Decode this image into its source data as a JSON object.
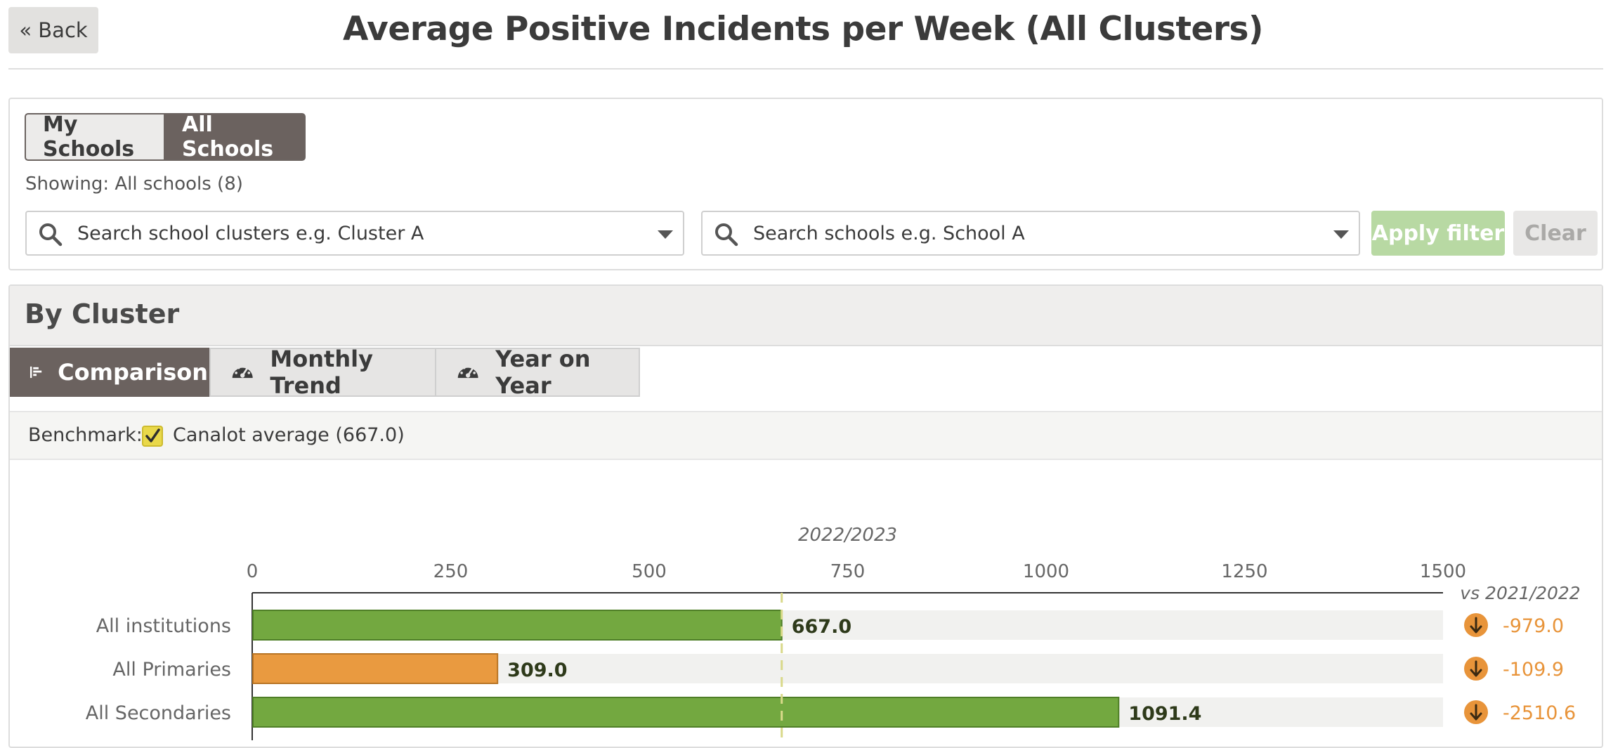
{
  "header": {
    "back_label": "« Back",
    "title": "Average Positive Incidents per Week (All Clusters)"
  },
  "filters": {
    "toggle": {
      "my_schools": "My Schools",
      "all_schools": "All Schools",
      "selected": "All Schools"
    },
    "showing": "Showing: All schools (8)",
    "cluster_search_placeholder": "Search school clusters e.g. Cluster A",
    "school_search_placeholder": "Search schools e.g. School A",
    "apply_label": "Apply filter",
    "clear_label": "Clear"
  },
  "cluster": {
    "title": "By Cluster",
    "tabs": [
      {
        "label": "Comparison",
        "icon": "bar-chart-icon",
        "active": true
      },
      {
        "label": "Monthly Trend",
        "icon": "gauge-icon",
        "active": false
      },
      {
        "label": "Year on Year",
        "icon": "gauge-icon",
        "active": false
      }
    ],
    "benchmark_label": "Benchmark:",
    "benchmark_option": "Canalot average (667.0)",
    "benchmark_checked": true
  },
  "colors": {
    "green": "#73a840",
    "orange": "#e99a40",
    "track": "#f1f1ef",
    "benchmark_line": "#d9d98a",
    "delta_orange": "#e8943a"
  },
  "chart_data": {
    "type": "bar",
    "orientation": "horizontal",
    "title": "2022/2023",
    "xlim": [
      0,
      1500
    ],
    "ticks": [
      0,
      250,
      500,
      750,
      1000,
      1250,
      1500
    ],
    "benchmark": 667.0,
    "comparison_header": "vs 2021/2022",
    "rows": [
      {
        "label": "All institutions",
        "value": 667.0,
        "value_label": "667.0",
        "status": "green",
        "delta_label": "-979.0",
        "delta_icon": "arrow-down-circle-icon"
      },
      {
        "label": "All Primaries",
        "value": 309.0,
        "value_label": "309.0",
        "status": "orange",
        "delta_label": "-109.9",
        "delta_icon": "arrow-down-circle-icon"
      },
      {
        "label": "All Secondaries",
        "value": 1091.4,
        "value_label": "1091.4",
        "status": "green",
        "delta_label": "-2510.6",
        "delta_icon": "arrow-down-circle-icon"
      }
    ]
  }
}
